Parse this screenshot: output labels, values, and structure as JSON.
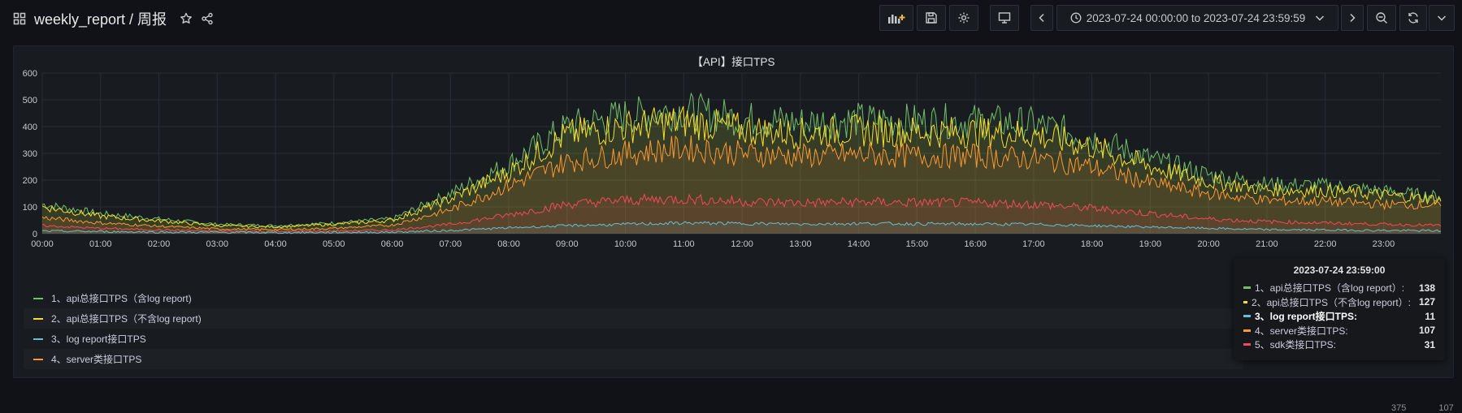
{
  "header": {
    "title": "weekly_report / 周报",
    "time_range": "2023-07-24 00:00:00 to 2023-07-24 23:59:59"
  },
  "panel": {
    "title": "【API】接口TPS"
  },
  "legend": [
    {
      "label": "1、api总接口TPS（含log report)",
      "color": "#73bf69"
    },
    {
      "label": "2、api总接口TPS（不含log report)",
      "color": "#fade2a"
    },
    {
      "label": "3、log report接口TPS",
      "color": "#5ec3d6"
    },
    {
      "label": "4、server类接口TPS",
      "color": "#ff9830"
    }
  ],
  "tooltip": {
    "time": "2023-07-24 23:59:00",
    "rows": [
      {
        "label": "1、api总接口TPS（含log report）:",
        "value": "138",
        "color": "#73bf69"
      },
      {
        "label": "2、api总接口TPS（不含log report）:",
        "value": "127",
        "color": "#fade2a"
      },
      {
        "label": "3、log report接口TPS:",
        "value": "11",
        "color": "#5ec3d6",
        "bold": true
      },
      {
        "label": "4、server类接口TPS:",
        "value": "107",
        "color": "#ff9830"
      },
      {
        "label": "5、sdk类接口TPS:",
        "value": "31",
        "color": "#f2495c"
      }
    ]
  },
  "cutoff_values": [
    "375",
    "107"
  ],
  "chart_data": {
    "type": "area",
    "title": "【API】接口TPS",
    "xlabel": "",
    "ylabel": "",
    "ylim": [
      0,
      600
    ],
    "yticks": [
      0,
      100,
      200,
      300,
      400,
      500,
      600
    ],
    "x": [
      "00:00",
      "01:00",
      "02:00",
      "03:00",
      "04:00",
      "05:00",
      "06:00",
      "07:00",
      "08:00",
      "09:00",
      "10:00",
      "11:00",
      "12:00",
      "13:00",
      "14:00",
      "15:00",
      "16:00",
      "17:00",
      "18:00",
      "19:00",
      "20:00",
      "21:00",
      "22:00",
      "23:00",
      "23:59"
    ],
    "xticks": [
      "00:00",
      "01:00",
      "02:00",
      "03:00",
      "04:00",
      "05:00",
      "06:00",
      "07:00",
      "08:00",
      "09:00",
      "10:00",
      "11:00",
      "12:00",
      "13:00",
      "14:00",
      "15:00",
      "16:00",
      "17:00",
      "18:00",
      "19:00",
      "20:00",
      "21:00",
      "22:00",
      "23:00"
    ],
    "grid": true,
    "series": [
      {
        "name": "1、api总接口TPS（含log report)",
        "color": "#73bf69",
        "values": [
          110,
          75,
          55,
          35,
          30,
          40,
          55,
          150,
          260,
          400,
          440,
          460,
          430,
          415,
          425,
          420,
          420,
          410,
          360,
          280,
          220,
          185,
          180,
          160,
          138
        ]
      },
      {
        "name": "2、api总接口TPS（不含log report)",
        "color": "#fade2a",
        "values": [
          100,
          65,
          48,
          30,
          25,
          35,
          50,
          130,
          230,
          370,
          400,
          420,
          390,
          375,
          385,
          380,
          380,
          370,
          325,
          250,
          195,
          165,
          160,
          145,
          127
        ]
      },
      {
        "name": "3、log report接口TPS",
        "color": "#5ec3d6",
        "values": [
          10,
          8,
          6,
          5,
          4,
          5,
          6,
          12,
          22,
          30,
          35,
          40,
          38,
          36,
          38,
          37,
          36,
          35,
          30,
          25,
          20,
          15,
          14,
          12,
          11
        ]
      },
      {
        "name": "4、server类接口TPS",
        "color": "#ff9830",
        "values": [
          60,
          40,
          28,
          18,
          15,
          20,
          32,
          90,
          180,
          270,
          300,
          320,
          300,
          290,
          295,
          290,
          290,
          280,
          250,
          190,
          150,
          125,
          120,
          110,
          107
        ]
      },
      {
        "name": "5、sdk类接口TPS",
        "color": "#f2495c",
        "values": [
          30,
          20,
          14,
          10,
          8,
          10,
          14,
          35,
          70,
          110,
          125,
          130,
          120,
          115,
          118,
          116,
          115,
          110,
          95,
          75,
          55,
          45,
          40,
          35,
          31
        ]
      }
    ]
  }
}
